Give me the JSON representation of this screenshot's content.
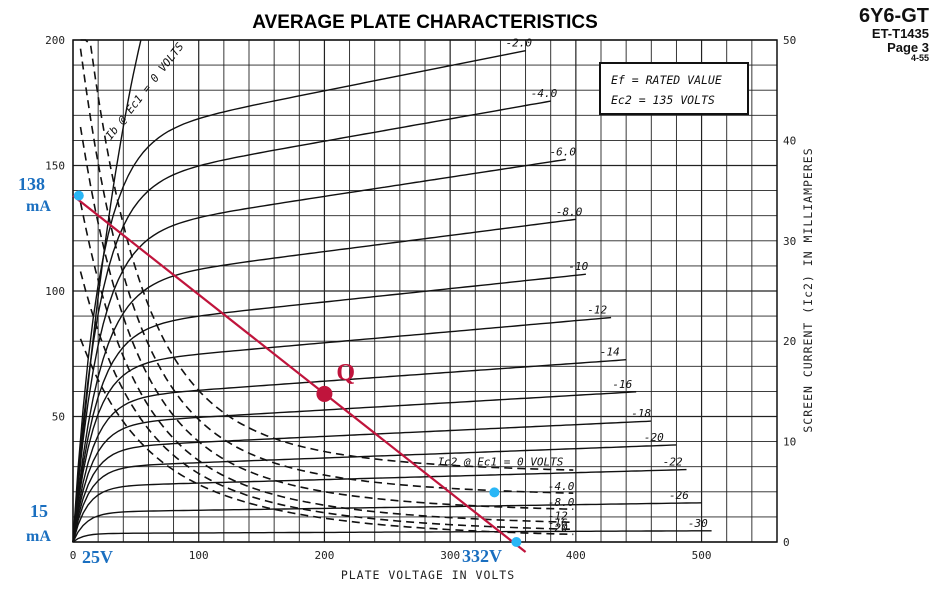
{
  "header": {
    "tube_type": "6Y6-GT",
    "doc_code": "ET-T1435",
    "page": "Page 3",
    "date": "4-55"
  },
  "chart_data": {
    "type": "line",
    "title": "AVERAGE PLATE CHARACTERISTICS",
    "xlabel": "PLATE VOLTAGE IN VOLTS",
    "ylabel": "",
    "y2label": "SCREEN CURRENT (Ic2) IN MILLIAMPERES",
    "xlim": [
      0,
      560
    ],
    "ylim": [
      0,
      200
    ],
    "y2lim": [
      0,
      50
    ],
    "x_ticks": [
      "0",
      "100",
      "200",
      "300",
      "400",
      "500"
    ],
    "y_ticks": [
      "50",
      "100",
      "150",
      "200"
    ],
    "y2_ticks": [
      "0",
      "10",
      "20",
      "30",
      "40",
      "50"
    ],
    "grid": true,
    "conditions": [
      "Ef = RATED VALUE",
      "Ec2 = 135 VOLTS"
    ],
    "plate_curves": [
      {
        "label": "Ib @ Ec1 = 0 VOLTS",
        "sat": 999,
        "knee": 14
      },
      {
        "label": "-2.0",
        "sat": 188,
        "knee": 20
      },
      {
        "label": "-4.0",
        "sat": 167,
        "knee": 20
      },
      {
        "label": "-6.0",
        "sat": 144,
        "knee": 20
      },
      {
        "label": "-8.0",
        "sat": 121,
        "knee": 20
      },
      {
        "label": "-10",
        "sat": 100,
        "knee": 18
      },
      {
        "label": "-12",
        "sat": 83,
        "knee": 16
      },
      {
        "label": "-14",
        "sat": 67,
        "knee": 15
      },
      {
        "label": "-16",
        "sat": 55,
        "knee": 14
      },
      {
        "label": "-18",
        "sat": 44,
        "knee": 13
      },
      {
        "label": "-20",
        "sat": 35,
        "knee": 12
      },
      {
        "label": "-22",
        "sat": 26,
        "knee": 11
      },
      {
        "label": "-26",
        "sat": 14,
        "knee": 10
      },
      {
        "label": "-30",
        "sat": 4,
        "knee": 8
      }
    ],
    "screen_curves": [
      {
        "label": "Ic2 @ Ec1 = 0 VOLTS",
        "base": 6.8
      },
      {
        "label": "-4.0",
        "base": 4.5
      },
      {
        "label": "-8.0",
        "base": 2.9
      },
      {
        "label": "-12",
        "base": 1.6
      },
      {
        "label": "-16",
        "base": 0.9
      },
      {
        "label": "-20",
        "base": 0.4
      }
    ],
    "load_line": {
      "x": [
        0,
        360
      ],
      "y": [
        138,
        0
      ]
    },
    "operating_point": {
      "label": "Q",
      "x": 200,
      "y": 59
    },
    "annotations": [
      {
        "text": "138",
        "sub": "mA",
        "x": 7,
        "y": 138
      },
      {
        "text": "15",
        "sub": "mA",
        "x": 332,
        "y": 15
      },
      {
        "text": "25V",
        "x": 25,
        "y": 0
      },
      {
        "text": "332V",
        "x": 332,
        "y": 0
      }
    ],
    "colors": {
      "load_line": "#c0143c",
      "markers": "#29b6f6",
      "annotation": "#1a6fc0",
      "grid": "#222222"
    }
  }
}
